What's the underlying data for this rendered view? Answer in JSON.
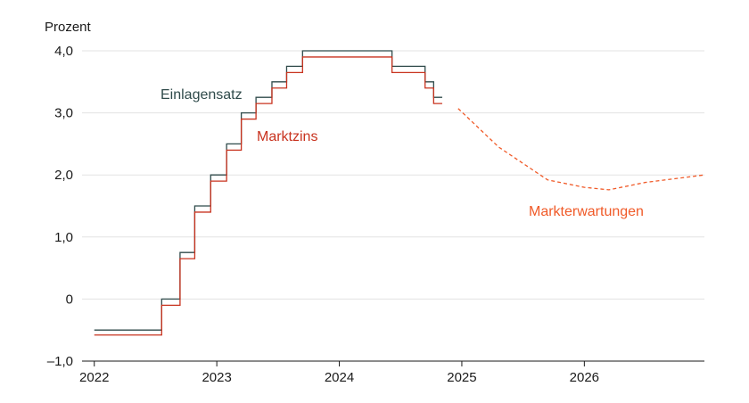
{
  "chart_data": {
    "type": "line",
    "unit_label": "Prozent",
    "y_ticks": [
      {
        "value": 4,
        "label": "4,0"
      },
      {
        "value": 3,
        "label": "3,0"
      },
      {
        "value": 2,
        "label": "2,0"
      },
      {
        "value": 1,
        "label": "1,0"
      },
      {
        "value": 0,
        "label": "0"
      },
      {
        "value": -1,
        "label": "–1,0"
      }
    ],
    "x_ticks": [
      {
        "value": 2022,
        "label": "2022"
      },
      {
        "value": 2023,
        "label": "2023"
      },
      {
        "value": 2024,
        "label": "2024"
      },
      {
        "value": 2025,
        "label": "2025"
      },
      {
        "value": 2026,
        "label": "2026"
      }
    ],
    "xlim": [
      2021.9,
      2026.98
    ],
    "ylim": [
      -1,
      4
    ],
    "grid": true,
    "colors": {
      "Einlagensatz": "#2f4a4a",
      "Marktzins": "#c8321e",
      "Markterwartungen": "#f05a28"
    },
    "series": [
      {
        "name": "Einlagensatz",
        "style": "step",
        "points": [
          [
            2022.0,
            -0.5
          ],
          [
            2022.55,
            -0.5
          ],
          [
            2022.55,
            0.0
          ],
          [
            2022.7,
            0.0
          ],
          [
            2022.7,
            0.75
          ],
          [
            2022.82,
            0.75
          ],
          [
            2022.82,
            1.5
          ],
          [
            2022.95,
            1.5
          ],
          [
            2022.95,
            2.0
          ],
          [
            2023.08,
            2.0
          ],
          [
            2023.08,
            2.5
          ],
          [
            2023.2,
            2.5
          ],
          [
            2023.2,
            3.0
          ],
          [
            2023.32,
            3.0
          ],
          [
            2023.32,
            3.25
          ],
          [
            2023.45,
            3.25
          ],
          [
            2023.45,
            3.5
          ],
          [
            2023.57,
            3.5
          ],
          [
            2023.57,
            3.75
          ],
          [
            2023.7,
            3.75
          ],
          [
            2023.7,
            4.0
          ],
          [
            2024.43,
            4.0
          ],
          [
            2024.43,
            3.75
          ],
          [
            2024.7,
            3.75
          ],
          [
            2024.7,
            3.5
          ],
          [
            2024.77,
            3.5
          ],
          [
            2024.77,
            3.25
          ],
          [
            2024.84,
            3.25
          ]
        ]
      },
      {
        "name": "Marktzins",
        "style": "step",
        "points": [
          [
            2022.0,
            -0.58
          ],
          [
            2022.55,
            -0.58
          ],
          [
            2022.55,
            -0.1
          ],
          [
            2022.7,
            -0.1
          ],
          [
            2022.7,
            0.65
          ],
          [
            2022.82,
            0.65
          ],
          [
            2022.82,
            1.4
          ],
          [
            2022.95,
            1.4
          ],
          [
            2022.95,
            1.9
          ],
          [
            2023.08,
            1.9
          ],
          [
            2023.08,
            2.4
          ],
          [
            2023.2,
            2.4
          ],
          [
            2023.2,
            2.9
          ],
          [
            2023.32,
            2.9
          ],
          [
            2023.32,
            3.15
          ],
          [
            2023.45,
            3.15
          ],
          [
            2023.45,
            3.4
          ],
          [
            2023.57,
            3.4
          ],
          [
            2023.57,
            3.65
          ],
          [
            2023.7,
            3.65
          ],
          [
            2023.7,
            3.9
          ],
          [
            2024.43,
            3.9
          ],
          [
            2024.43,
            3.65
          ],
          [
            2024.7,
            3.65
          ],
          [
            2024.7,
            3.4
          ],
          [
            2024.77,
            3.4
          ],
          [
            2024.77,
            3.15
          ],
          [
            2024.84,
            3.15
          ]
        ]
      },
      {
        "name": "Markterwartungen",
        "style": "dashed",
        "points": [
          [
            2024.97,
            3.07
          ],
          [
            2025.3,
            2.45
          ],
          [
            2025.7,
            1.92
          ],
          [
            2026.0,
            1.8
          ],
          [
            2026.2,
            1.76
          ],
          [
            2026.5,
            1.88
          ],
          [
            2026.98,
            2.0
          ]
        ]
      }
    ]
  }
}
